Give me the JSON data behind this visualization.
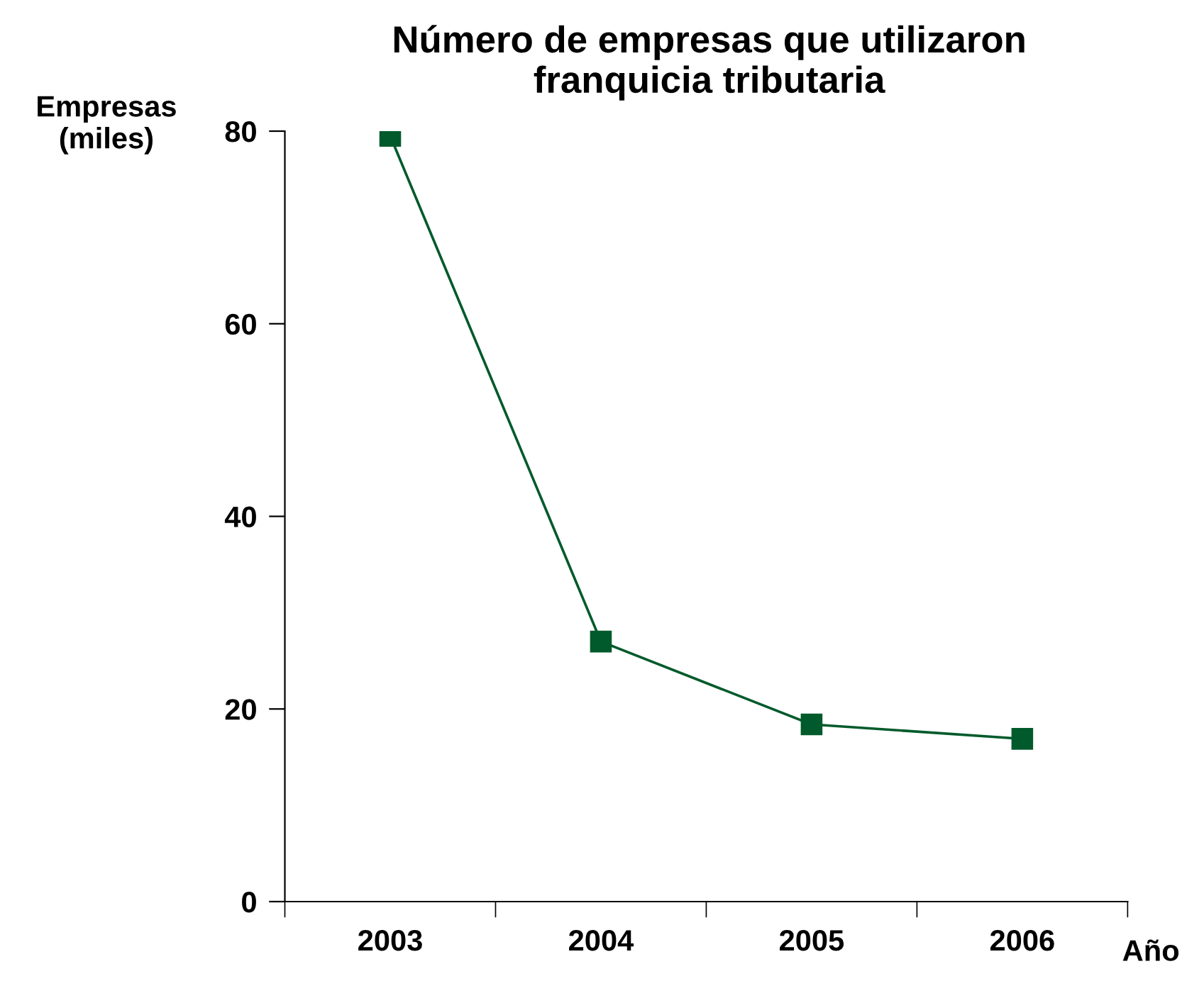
{
  "chart_data": {
    "type": "line",
    "title": "Número de empresas que utilizaron\nfranquicia tributaria",
    "ylabel": "Empresas\n(miles)",
    "xlabel": "Año",
    "categories": [
      "2003",
      "2004",
      "2005",
      "2006"
    ],
    "series": [
      {
        "color": "#005a2b",
        "values": [
          79.5,
          27,
          18.4,
          16.9
        ]
      }
    ],
    "ylim": [
      0,
      80
    ],
    "yticks": [
      0,
      20,
      40,
      60,
      80
    ],
    "grid": false,
    "legend": false,
    "marker": "square",
    "line_style": "solid"
  }
}
